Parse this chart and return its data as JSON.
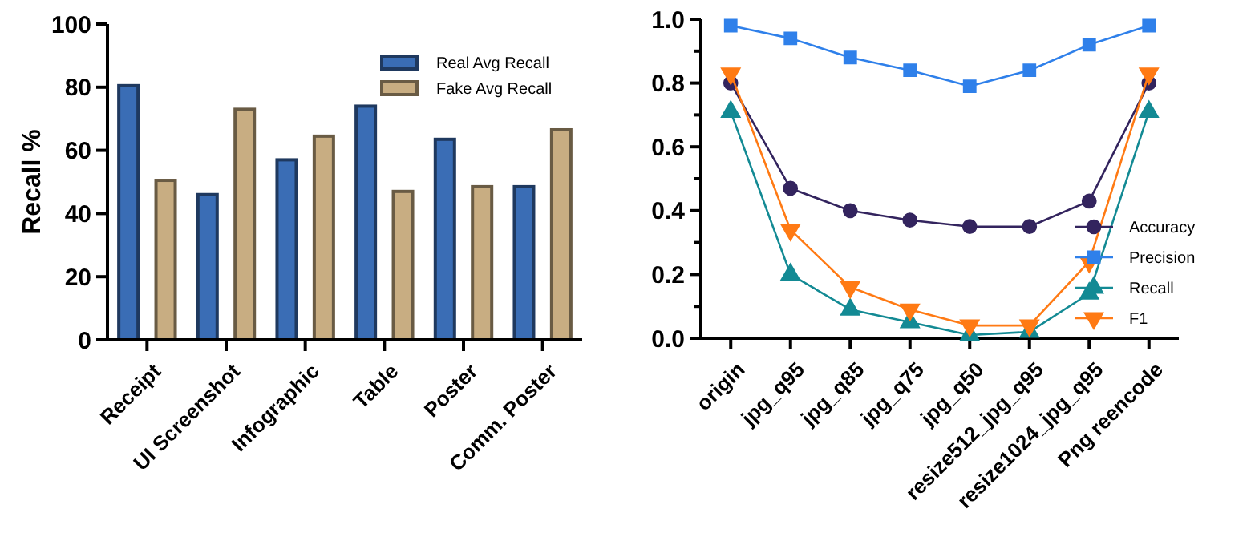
{
  "chart_data": [
    {
      "type": "bar",
      "ylabel": "Recall %",
      "categories": [
        "Receipt",
        "UI Screenshot",
        "Infographic",
        "Table",
        "Poster",
        "Comm. Poster"
      ],
      "series": [
        {
          "name": "Real Avg Recall",
          "color": "#3a6db5",
          "values": [
            80.5,
            46,
            57,
            74,
            63.5,
            48.5
          ]
        },
        {
          "name": "Fake Avg Recall",
          "color": "#c8ad82",
          "values": [
            50.5,
            73,
            64.5,
            47,
            48.5,
            66.5
          ]
        }
      ],
      "ylim": [
        0,
        100
      ],
      "yticks": [
        0,
        20,
        40,
        60,
        80,
        100
      ],
      "grid": false,
      "legend": "top right"
    },
    {
      "type": "line",
      "categories": [
        "origin",
        "jpg_q95",
        "jpg_q85",
        "jpg_q75",
        "jpg_q50",
        "resize512_jpg_q95",
        "resize1024_jpg_q95",
        "Png reencode"
      ],
      "series": [
        {
          "name": "Accuracy",
          "color": "#33245e",
          "marker": "circle",
          "values": [
            0.8,
            0.47,
            0.4,
            0.37,
            0.35,
            0.35,
            0.43,
            0.8
          ]
        },
        {
          "name": "Precision",
          "color": "#2f80ea",
          "marker": "square",
          "values": [
            0.98,
            0.94,
            0.88,
            0.84,
            0.79,
            0.84,
            0.92,
            0.98
          ]
        },
        {
          "name": "Recall",
          "color": "#138a94",
          "marker": "triangle",
          "values": [
            0.71,
            0.2,
            0.09,
            0.05,
            0.01,
            0.02,
            0.14,
            0.71
          ]
        },
        {
          "name": "F1",
          "color": "#ff7a14",
          "marker": "triangle-down",
          "values": [
            0.83,
            0.34,
            0.16,
            0.09,
            0.04,
            0.04,
            0.24,
            0.83
          ]
        }
      ],
      "ylim": [
        0,
        1
      ],
      "yticks": [
        {
          "value": 0,
          "label": "0.0"
        },
        {
          "value": 0.1,
          "label": null
        },
        {
          "value": 0.2,
          "label": "0.2"
        },
        {
          "value": 0.3,
          "label": null
        },
        {
          "value": 0.4,
          "label": "0.4"
        },
        {
          "value": 0.5,
          "label": null
        },
        {
          "value": 0.6,
          "label": "0.6"
        },
        {
          "value": 0.7,
          "label": null
        },
        {
          "value": 0.8,
          "label": "0.8"
        },
        {
          "value": 0.9,
          "label": null
        },
        {
          "value": 1,
          "label": "1.0"
        }
      ],
      "grid": false,
      "legend": "right",
      "line_style": "solid"
    }
  ]
}
